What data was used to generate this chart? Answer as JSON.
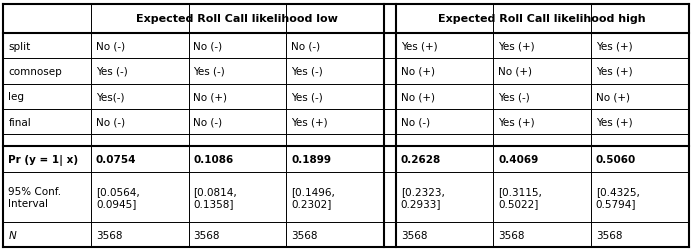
{
  "col_header_low": "Expected Roll Call likelihood low",
  "col_header_high": "Expected Roll Call likelihood high",
  "row_labels": [
    "split",
    "comnosep",
    "leg",
    "final",
    "",
    "Pr (y = 1| x)",
    "95% Conf.\nInterval",
    "N"
  ],
  "row_labels_bold": [
    false,
    false,
    false,
    false,
    false,
    true,
    false,
    false
  ],
  "row_labels_italic": [
    false,
    false,
    false,
    false,
    false,
    false,
    false,
    true
  ],
  "col1": [
    "No (-)",
    "Yes (-)",
    "Yes(-)",
    "No (-)",
    "",
    "0.0754",
    "[0.0564,\n0.0945]",
    "3568"
  ],
  "col2": [
    "No (-)",
    "Yes (-)",
    "No (+)",
    "No (-)",
    "",
    "0.1086",
    "[0.0814,\n0.1358]",
    "3568"
  ],
  "col3": [
    "No (-)",
    "Yes (-)",
    "Yes (-)",
    "Yes (+)",
    "",
    "0.1899",
    "[0.1496,\n0.2302]",
    "3568"
  ],
  "col4": [
    "Yes (+)",
    "No (+)",
    "No (+)",
    "No (-)",
    "",
    "0.2628",
    "[0.2323,\n0.2933]",
    "3568"
  ],
  "col5": [
    "Yes (+)",
    "No (+)",
    "Yes (-)",
    "Yes (+)",
    "",
    "0.4069",
    "[0.3115,\n0.5022]",
    "3568"
  ],
  "col6": [
    "Yes (+)",
    "Yes (+)",
    "No (+)",
    "Yes (+)",
    "",
    "0.5060",
    "[0.4325,\n0.5794]",
    "3568"
  ],
  "bg_color": "#ffffff",
  "figsize": [
    6.92,
    2.51
  ],
  "dpi": 100
}
